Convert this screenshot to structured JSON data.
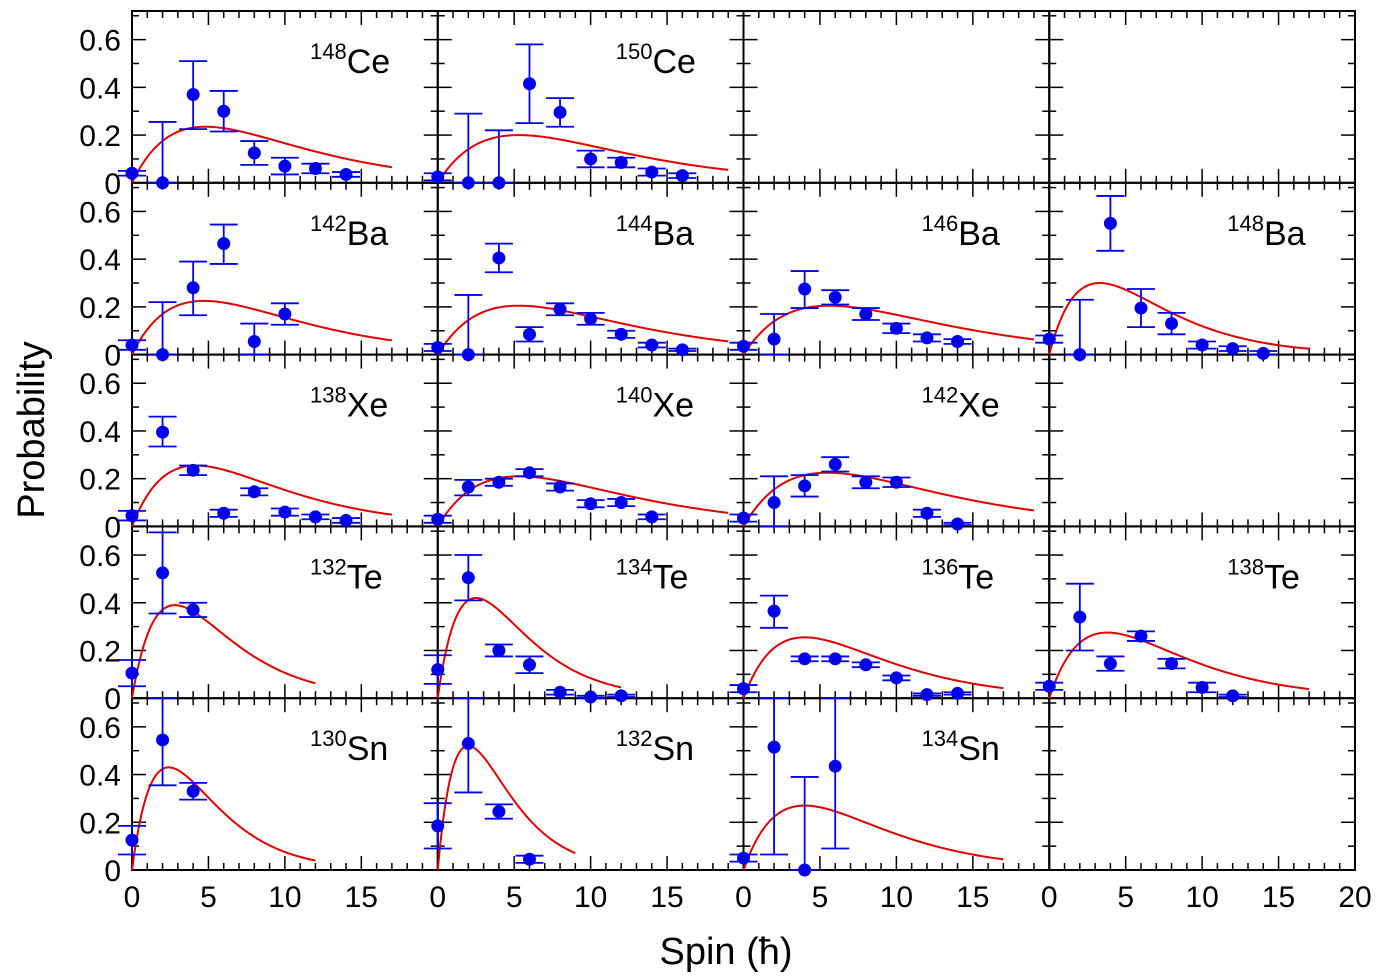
{
  "x_axis_label": "Spin (ħ)",
  "y_axis_label": "Probability",
  "x_tick_labels": [
    "0",
    "5",
    "10",
    "15",
    "20"
  ],
  "y_tick_labels": [
    "0",
    "0.2",
    "0.4",
    "0.6"
  ],
  "colors": {
    "data": "#0000ee",
    "fit": "#e00000",
    "axis": "#000000"
  },
  "chart_data": {
    "type": "scatter",
    "layout": {
      "rows": 5,
      "cols": 4
    },
    "xlim": [
      0,
      20
    ],
    "ylim": [
      0,
      0.72
    ],
    "x_ticks": [
      0,
      5,
      10,
      15,
      20
    ],
    "y_ticks": [
      0,
      0.2,
      0.4,
      0.6
    ],
    "xlabel": "Spin (ħ)",
    "ylabel": "Probability",
    "grid": false,
    "panels": [
      {
        "row": 0,
        "col": 0,
        "mass": "148",
        "element": "Ce",
        "fit": {
          "j0": 4.8,
          "ymax": 0.235,
          "xmax": 17
        },
        "points": [
          {
            "x": 0,
            "y": 0.04,
            "lo": 0.03,
            "hi": 0.05
          },
          {
            "x": 2,
            "y": 0.0,
            "lo": 0.0,
            "hi": 0.255
          },
          {
            "x": 4,
            "y": 0.37,
            "lo": 0.225,
            "hi": 0.51
          },
          {
            "x": 6,
            "y": 0.3,
            "lo": 0.215,
            "hi": 0.385
          },
          {
            "x": 8,
            "y": 0.125,
            "lo": 0.075,
            "hi": 0.175
          },
          {
            "x": 10,
            "y": 0.07,
            "lo": 0.035,
            "hi": 0.105
          },
          {
            "x": 12,
            "y": 0.06,
            "lo": 0.04,
            "hi": 0.08
          },
          {
            "x": 14,
            "y": 0.035,
            "lo": 0.025,
            "hi": 0.045
          }
        ]
      },
      {
        "row": 0,
        "col": 1,
        "mass": "150",
        "element": "Ce",
        "fit": {
          "j0": 5.3,
          "ymax": 0.2,
          "xmax": 19
        },
        "points": [
          {
            "x": 0,
            "y": 0.025,
            "lo": 0.01,
            "hi": 0.04
          },
          {
            "x": 2,
            "y": 0.0,
            "lo": 0.0,
            "hi": 0.29
          },
          {
            "x": 4,
            "y": 0.0,
            "lo": 0.0,
            "hi": 0.22
          },
          {
            "x": 6,
            "y": 0.415,
            "lo": 0.25,
            "hi": 0.58
          },
          {
            "x": 8,
            "y": 0.295,
            "lo": 0.235,
            "hi": 0.355
          },
          {
            "x": 10,
            "y": 0.1,
            "lo": 0.065,
            "hi": 0.135
          },
          {
            "x": 12,
            "y": 0.085,
            "lo": 0.065,
            "hi": 0.105
          },
          {
            "x": 14,
            "y": 0.045,
            "lo": 0.03,
            "hi": 0.06
          },
          {
            "x": 16,
            "y": 0.03,
            "lo": 0.02,
            "hi": 0.04
          }
        ]
      },
      {
        "row": 1,
        "col": 0,
        "mass": "142",
        "element": "Ba",
        "fit": {
          "j0": 4.7,
          "ymax": 0.225,
          "xmax": 17
        },
        "points": [
          {
            "x": 0,
            "y": 0.04,
            "lo": 0.02,
            "hi": 0.06
          },
          {
            "x": 2,
            "y": 0.0,
            "lo": 0.0,
            "hi": 0.22
          },
          {
            "x": 4,
            "y": 0.28,
            "lo": 0.165,
            "hi": 0.39
          },
          {
            "x": 6,
            "y": 0.465,
            "lo": 0.38,
            "hi": 0.545
          },
          {
            "x": 8,
            "y": 0.055,
            "lo": 0.0,
            "hi": 0.13
          },
          {
            "x": 10,
            "y": 0.17,
            "lo": 0.125,
            "hi": 0.215
          }
        ]
      },
      {
        "row": 1,
        "col": 1,
        "mass": "144",
        "element": "Ba",
        "fit": {
          "j0": 5.3,
          "ymax": 0.205,
          "xmax": 19
        },
        "points": [
          {
            "x": 0,
            "y": 0.03,
            "lo": 0.015,
            "hi": 0.045
          },
          {
            "x": 2,
            "y": 0.0,
            "lo": 0.0,
            "hi": 0.25
          },
          {
            "x": 4,
            "y": 0.405,
            "lo": 0.345,
            "hi": 0.465
          },
          {
            "x": 6,
            "y": 0.085,
            "lo": 0.055,
            "hi": 0.115
          },
          {
            "x": 8,
            "y": 0.19,
            "lo": 0.165,
            "hi": 0.215
          },
          {
            "x": 10,
            "y": 0.15,
            "lo": 0.125,
            "hi": 0.175
          },
          {
            "x": 12,
            "y": 0.085,
            "lo": 0.07,
            "hi": 0.1
          },
          {
            "x": 14,
            "y": 0.04,
            "lo": 0.03,
            "hi": 0.05
          },
          {
            "x": 16,
            "y": 0.02,
            "lo": 0.015,
            "hi": 0.025
          }
        ]
      },
      {
        "row": 1,
        "col": 2,
        "mass": "146",
        "element": "Ba",
        "fit": {
          "j0": 5.6,
          "ymax": 0.205,
          "xmax": 19
        },
        "points": [
          {
            "x": 0,
            "y": 0.035,
            "lo": 0.02,
            "hi": 0.05
          },
          {
            "x": 2,
            "y": 0.065,
            "lo": 0.0,
            "hi": 0.17
          },
          {
            "x": 4,
            "y": 0.275,
            "lo": 0.195,
            "hi": 0.35
          },
          {
            "x": 6,
            "y": 0.24,
            "lo": 0.21,
            "hi": 0.27
          },
          {
            "x": 8,
            "y": 0.17,
            "lo": 0.145,
            "hi": 0.195
          },
          {
            "x": 10,
            "y": 0.11,
            "lo": 0.09,
            "hi": 0.13
          },
          {
            "x": 12,
            "y": 0.07,
            "lo": 0.055,
            "hi": 0.085
          },
          {
            "x": 14,
            "y": 0.055,
            "lo": 0.045,
            "hi": 0.065
          }
        ]
      },
      {
        "row": 1,
        "col": 3,
        "mass": "148",
        "element": "Ba",
        "fit": {
          "j0": 3.3,
          "ymax": 0.3,
          "xmax": 17
        },
        "points": [
          {
            "x": 0,
            "y": 0.065,
            "lo": 0.05,
            "hi": 0.08
          },
          {
            "x": 2,
            "y": 0.0,
            "lo": 0.0,
            "hi": 0.23
          },
          {
            "x": 4,
            "y": 0.55,
            "lo": 0.435,
            "hi": 0.665
          },
          {
            "x": 6,
            "y": 0.195,
            "lo": 0.115,
            "hi": 0.275
          },
          {
            "x": 8,
            "y": 0.13,
            "lo": 0.085,
            "hi": 0.175
          },
          {
            "x": 10,
            "y": 0.04,
            "lo": 0.025,
            "hi": 0.055
          },
          {
            "x": 12,
            "y": 0.025,
            "lo": 0.015,
            "hi": 0.035
          },
          {
            "x": 14,
            "y": 0.005,
            "lo": 0.0,
            "hi": 0.015
          }
        ]
      },
      {
        "row": 2,
        "col": 0,
        "mass": "138",
        "element": "Xe",
        "fit": {
          "j0": 4.2,
          "ymax": 0.255,
          "xmax": 17
        },
        "points": [
          {
            "x": 0,
            "y": 0.045,
            "lo": 0.025,
            "hi": 0.065
          },
          {
            "x": 2,
            "y": 0.395,
            "lo": 0.335,
            "hi": 0.46
          },
          {
            "x": 4,
            "y": 0.235,
            "lo": 0.215,
            "hi": 0.255
          },
          {
            "x": 6,
            "y": 0.055,
            "lo": 0.04,
            "hi": 0.07
          },
          {
            "x": 8,
            "y": 0.145,
            "lo": 0.13,
            "hi": 0.16
          },
          {
            "x": 10,
            "y": 0.06,
            "lo": 0.045,
            "hi": 0.075
          },
          {
            "x": 12,
            "y": 0.04,
            "lo": 0.03,
            "hi": 0.05
          },
          {
            "x": 14,
            "y": 0.025,
            "lo": 0.015,
            "hi": 0.035
          }
        ]
      },
      {
        "row": 2,
        "col": 1,
        "mass": "140",
        "element": "Xe",
        "fit": {
          "j0": 5.3,
          "ymax": 0.21,
          "xmax": 19
        },
        "points": [
          {
            "x": 0,
            "y": 0.03,
            "lo": 0.015,
            "hi": 0.045
          },
          {
            "x": 2,
            "y": 0.165,
            "lo": 0.13,
            "hi": 0.195
          },
          {
            "x": 4,
            "y": 0.185,
            "lo": 0.17,
            "hi": 0.2
          },
          {
            "x": 6,
            "y": 0.225,
            "lo": 0.21,
            "hi": 0.24
          },
          {
            "x": 8,
            "y": 0.165,
            "lo": 0.15,
            "hi": 0.18
          },
          {
            "x": 10,
            "y": 0.095,
            "lo": 0.08,
            "hi": 0.11
          },
          {
            "x": 12,
            "y": 0.1,
            "lo": 0.085,
            "hi": 0.115
          },
          {
            "x": 14,
            "y": 0.04,
            "lo": 0.03,
            "hi": 0.05
          }
        ]
      },
      {
        "row": 2,
        "col": 2,
        "mass": "142",
        "element": "Xe",
        "fit": {
          "j0": 5.5,
          "ymax": 0.225,
          "xmax": 19
        },
        "points": [
          {
            "x": 0,
            "y": 0.035,
            "lo": 0.02,
            "hi": 0.05
          },
          {
            "x": 2,
            "y": 0.1,
            "lo": 0.0,
            "hi": 0.21
          },
          {
            "x": 4,
            "y": 0.17,
            "lo": 0.125,
            "hi": 0.215
          },
          {
            "x": 6,
            "y": 0.26,
            "lo": 0.23,
            "hi": 0.29
          },
          {
            "x": 8,
            "y": 0.185,
            "lo": 0.16,
            "hi": 0.21
          },
          {
            "x": 10,
            "y": 0.185,
            "lo": 0.165,
            "hi": 0.205
          },
          {
            "x": 12,
            "y": 0.055,
            "lo": 0.04,
            "hi": 0.07
          },
          {
            "x": 14,
            "y": 0.01,
            "lo": 0.005,
            "hi": 0.015
          }
        ]
      },
      {
        "row": 3,
        "col": 0,
        "mass": "132",
        "element": "Te",
        "fit": {
          "j0": 2.8,
          "ymax": 0.39,
          "xmax": 12
        },
        "points": [
          {
            "x": 0,
            "y": 0.105,
            "lo": 0.05,
            "hi": 0.16
          },
          {
            "x": 2,
            "y": 0.525,
            "lo": 0.355,
            "hi": 0.695
          },
          {
            "x": 4,
            "y": 0.37,
            "lo": 0.34,
            "hi": 0.4
          }
        ]
      },
      {
        "row": 3,
        "col": 1,
        "mass": "134",
        "element": "Te",
        "fit": {
          "j0": 2.5,
          "ymax": 0.42,
          "xmax": 12
        },
        "points": [
          {
            "x": 0,
            "y": 0.12,
            "lo": 0.06,
            "hi": 0.18
          },
          {
            "x": 2,
            "y": 0.505,
            "lo": 0.41,
            "hi": 0.6
          },
          {
            "x": 4,
            "y": 0.2,
            "lo": 0.175,
            "hi": 0.225
          },
          {
            "x": 6,
            "y": 0.14,
            "lo": 0.105,
            "hi": 0.175
          },
          {
            "x": 8,
            "y": 0.025,
            "lo": 0.015,
            "hi": 0.035
          },
          {
            "x": 10,
            "y": 0.005,
            "lo": 0.0,
            "hi": 0.01
          },
          {
            "x": 12,
            "y": 0.01,
            "lo": 0.005,
            "hi": 0.015
          }
        ]
      },
      {
        "row": 3,
        "col": 2,
        "mass": "136",
        "element": "Te",
        "fit": {
          "j0": 4.0,
          "ymax": 0.255,
          "xmax": 17
        },
        "points": [
          {
            "x": 0,
            "y": 0.04,
            "lo": 0.025,
            "hi": 0.055
          },
          {
            "x": 2,
            "y": 0.365,
            "lo": 0.295,
            "hi": 0.43
          },
          {
            "x": 4,
            "y": 0.165,
            "lo": 0.155,
            "hi": 0.175
          },
          {
            "x": 6,
            "y": 0.165,
            "lo": 0.155,
            "hi": 0.175
          },
          {
            "x": 8,
            "y": 0.14,
            "lo": 0.13,
            "hi": 0.15
          },
          {
            "x": 10,
            "y": 0.085,
            "lo": 0.075,
            "hi": 0.095
          },
          {
            "x": 12,
            "y": 0.015,
            "lo": 0.01,
            "hi": 0.02
          },
          {
            "x": 14,
            "y": 0.02,
            "lo": 0.015,
            "hi": 0.025
          }
        ]
      },
      {
        "row": 3,
        "col": 3,
        "mass": "138",
        "element": "Te",
        "fit": {
          "j0": 3.8,
          "ymax": 0.275,
          "xmax": 17
        },
        "points": [
          {
            "x": 0,
            "y": 0.05,
            "lo": 0.035,
            "hi": 0.065
          },
          {
            "x": 2,
            "y": 0.34,
            "lo": 0.2,
            "hi": 0.48
          },
          {
            "x": 4,
            "y": 0.145,
            "lo": 0.115,
            "hi": 0.175
          },
          {
            "x": 6,
            "y": 0.26,
            "lo": 0.24,
            "hi": 0.28
          },
          {
            "x": 8,
            "y": 0.145,
            "lo": 0.125,
            "hi": 0.165
          },
          {
            "x": 10,
            "y": 0.045,
            "lo": 0.025,
            "hi": 0.065
          },
          {
            "x": 12,
            "y": 0.01,
            "lo": 0.005,
            "hi": 0.015
          }
        ]
      },
      {
        "row": 4,
        "col": 0,
        "mass": "130",
        "element": "Sn",
        "fit": {
          "j0": 2.4,
          "ymax": 0.43,
          "xmax": 12
        },
        "points": [
          {
            "x": 0,
            "y": 0.125,
            "lo": 0.065,
            "hi": 0.185
          },
          {
            "x": 2,
            "y": 0.545,
            "lo": 0.355,
            "hi": 0.72
          },
          {
            "x": 4,
            "y": 0.33,
            "lo": 0.295,
            "hi": 0.365
          }
        ]
      },
      {
        "row": 4,
        "col": 1,
        "mass": "132",
        "element": "Sn",
        "fit": {
          "j0": 2.0,
          "ymax": 0.52,
          "xmax": 9
        },
        "points": [
          {
            "x": 0,
            "y": 0.185,
            "lo": 0.09,
            "hi": 0.28
          },
          {
            "x": 2,
            "y": 0.53,
            "lo": 0.325,
            "hi": 0.72
          },
          {
            "x": 4,
            "y": 0.245,
            "lo": 0.215,
            "hi": 0.275
          },
          {
            "x": 6,
            "y": 0.045,
            "lo": 0.03,
            "hi": 0.06
          }
        ]
      },
      {
        "row": 4,
        "col": 2,
        "mass": "134",
        "element": "Sn",
        "fit": {
          "j0": 4.0,
          "ymax": 0.27,
          "xmax": 17
        },
        "points": [
          {
            "x": 0,
            "y": 0.05,
            "lo": 0.035,
            "hi": 0.065
          },
          {
            "x": 2,
            "y": 0.515,
            "lo": 0.065,
            "hi": 0.72
          },
          {
            "x": 4,
            "y": 0.0,
            "lo": 0.0,
            "hi": 0.39
          },
          {
            "x": 6,
            "y": 0.435,
            "lo": 0.09,
            "hi": 0.72
          }
        ]
      }
    ]
  }
}
